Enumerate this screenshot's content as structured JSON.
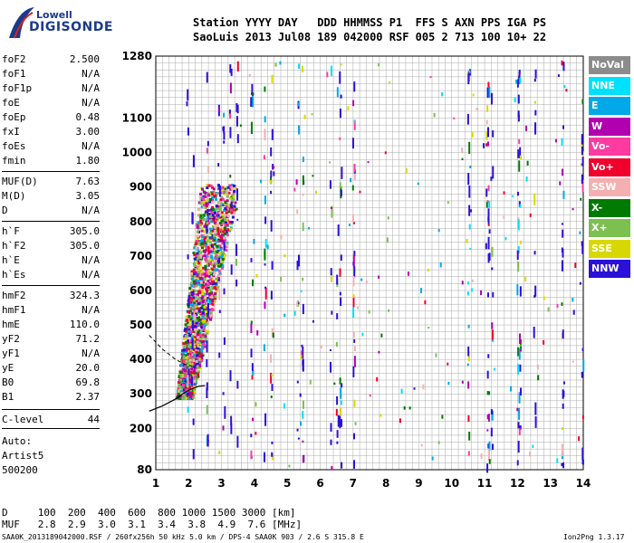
{
  "logo": {
    "brand": "Lowell",
    "product": "DIGISONDE",
    "icon": "lowell-digisonde-logo"
  },
  "header": {
    "line1": "Station YYYY DAY   DDD HHMMSS P1  FFS S AXN PPS IGA PS",
    "line2": "SaoLuis 2013 Jul08 189 042000 RSF 005 2 713 100 10+ 22"
  },
  "params": [
    {
      "name": "foF2",
      "value": "2.500"
    },
    {
      "name": "foF1",
      "value": "N/A"
    },
    {
      "name": "foF1p",
      "value": "N/A"
    },
    {
      "name": "foE",
      "value": "N/A"
    },
    {
      "name": "foEp",
      "value": "0.48"
    },
    {
      "name": "fxI",
      "value": "3.00"
    },
    {
      "name": "foEs",
      "value": "N/A"
    },
    {
      "name": "fmin",
      "value": "1.80"
    },
    {
      "name": "MUF(D)",
      "value": "7.63"
    },
    {
      "name": "M(D)",
      "value": "3.05"
    },
    {
      "name": "D",
      "value": "N/A"
    },
    {
      "name": "h`F",
      "value": "305.0"
    },
    {
      "name": "h`F2",
      "value": "305.0"
    },
    {
      "name": "h`E",
      "value": "N/A"
    },
    {
      "name": "h`Es",
      "value": "N/A"
    },
    {
      "name": "hmF2",
      "value": "324.3"
    },
    {
      "name": "hmF1",
      "value": "N/A"
    },
    {
      "name": "hmE",
      "value": "110.0"
    },
    {
      "name": "yF2",
      "value": "71.2"
    },
    {
      "name": "yF1",
      "value": "N/A"
    },
    {
      "name": "yE",
      "value": "20.0"
    },
    {
      "name": "B0",
      "value": "69.8"
    },
    {
      "name": "B1",
      "value": "2.37"
    },
    {
      "name": "C-level",
      "value": "44"
    }
  ],
  "auto": {
    "line1": "Auto:",
    "line2": "Artist5",
    "line3": "500200"
  },
  "legend": [
    {
      "label": "NoVal",
      "color": "#8c8c8c"
    },
    {
      "label": "NNE",
      "color": "#00e0ff"
    },
    {
      "label": "E",
      "color": "#00a8e8"
    },
    {
      "label": "W",
      "color": "#b000b0"
    },
    {
      "label": "Vo-",
      "color": "#ff3aa0"
    },
    {
      "label": "Vo+",
      "color": "#f0002a"
    },
    {
      "label": "SSW",
      "color": "#f4b0b0"
    },
    {
      "label": "X-",
      "color": "#007a00"
    },
    {
      "label": "X+",
      "color": "#7cc050"
    },
    {
      "label": "SSE",
      "color": "#d8d800"
    },
    {
      "label": "NNW",
      "color": "#2a10d8"
    }
  ],
  "footer": {
    "d_row": "D     100  200  400  600  800 1000 1500 3000 [km]",
    "muf_row": "MUF   2.8  2.9  3.0  3.1  3.4  3.8  4.9  7.6 [MHz]",
    "file_line": "SAA0K_2013189042000.RSF / 260fx256h 50 kHz 5.0 km / DPS-4 SAA0K 903 / 2.6 S 315.8 E",
    "version": "Ion2Png 1.3.17"
  },
  "chart_data": {
    "type": "scatter",
    "xlabel": "",
    "ylabel": "",
    "xlim": [
      1,
      14
    ],
    "ylim": [
      80,
      1280
    ],
    "x_ticks": [
      1,
      2,
      3,
      4,
      5,
      6,
      7,
      8,
      9,
      10,
      11,
      12,
      13,
      14
    ],
    "y_ticks": [
      80,
      200,
      300,
      400,
      500,
      600,
      700,
      800,
      900,
      1000,
      1100,
      1280
    ],
    "y_tick_labels": [
      "80",
      "200",
      "300",
      "400",
      "500",
      "600",
      "700",
      "800",
      "900",
      "1000",
      "1100",
      "1280"
    ],
    "grid": true,
    "legend_placement": "right",
    "profile_curve": {
      "x": [
        0.8,
        1.2,
        1.6,
        1.9,
        2.1,
        2.3,
        2.5
      ],
      "y": [
        250,
        265,
        285,
        305,
        315,
        322,
        324.3
      ]
    },
    "dashed_curve": {
      "x": [
        0.8,
        1.2,
        1.6,
        1.9,
        2.2
      ],
      "y": [
        470,
        430,
        400,
        385,
        378
      ]
    },
    "trace_clusters": [
      {
        "name": "F-trace",
        "x_range": [
          1.8,
          3.3
        ],
        "y_base": 290,
        "y_top": 900,
        "direction": "X-"
      },
      {
        "name": "F-trace-O",
        "x_range": [
          1.7,
          2.7
        ],
        "y_base": 280,
        "y_top": 700,
        "direction": "Vo+"
      }
    ]
  }
}
